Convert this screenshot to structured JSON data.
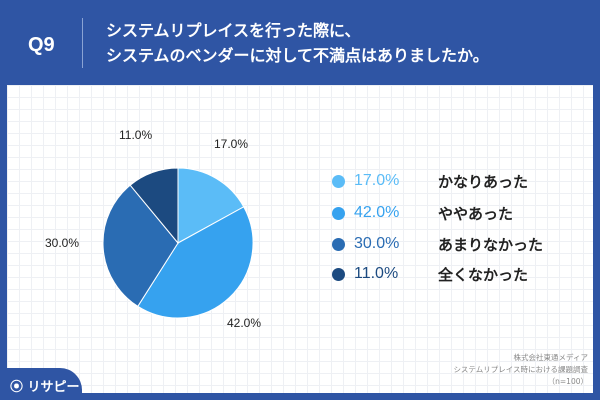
{
  "header": {
    "question": "Q9",
    "title_line1": "システムリプレイスを行った際に、",
    "title_line2": "システムのベンダーに対して不満点はありましたか。"
  },
  "chart_data": {
    "type": "pie",
    "start": "top",
    "direction": "clockwise",
    "categories": [
      "かなりあった",
      "ややあった",
      "あまりなかった",
      "全くなかった"
    ],
    "values": [
      17.0,
      42.0,
      30.0,
      11.0
    ],
    "labels": [
      "17.0%",
      "42.0%",
      "30.0%",
      "11.0%"
    ],
    "colors": [
      "#5bbcf7",
      "#36a2ef",
      "#2a6cb3",
      "#1c4a80"
    ],
    "legend_placement": "right"
  },
  "source": {
    "line1": "株式会社東通メディア",
    "line2": "システムリプレイス時における課題調査",
    "line3": "（n=100）"
  },
  "logo": "リサピー"
}
